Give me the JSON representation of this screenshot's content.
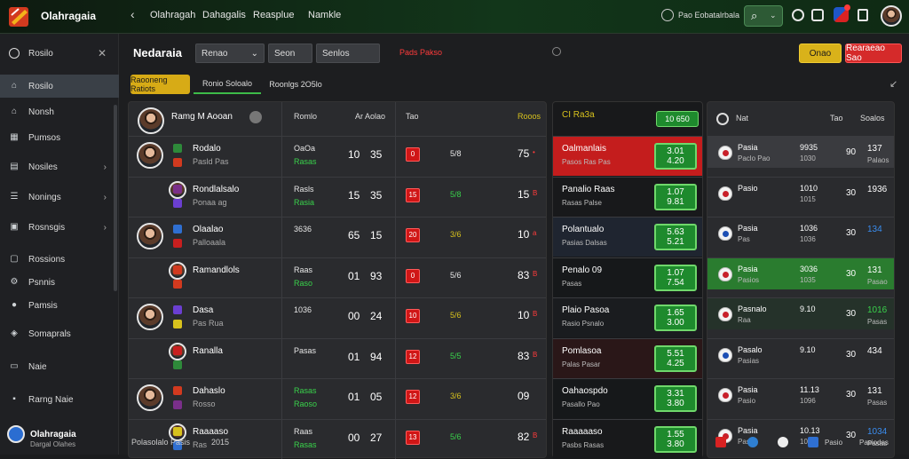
{
  "topbar": {
    "brand": "Olahragaia",
    "nav": [
      "Olahragah",
      "Dahagalis",
      "Reasplue",
      "Namkle"
    ],
    "right_label": "Pao Eobatalrbala",
    "search_icon": "search-icon"
  },
  "sidebar": {
    "header": "Rosilo",
    "items": [
      {
        "label": "Rosilo",
        "icon": "home-icon",
        "active": true,
        "chev": false
      },
      {
        "label": "Nonsh",
        "icon": "house-icon",
        "active": false,
        "chev": false
      },
      {
        "label": "Pumsos",
        "icon": "calendar-icon",
        "active": false,
        "chev": false
      },
      {
        "label": "Nosiles",
        "icon": "grid-icon",
        "active": false,
        "chev": true
      },
      {
        "label": "Nonings",
        "icon": "list-icon",
        "active": false,
        "chev": true
      },
      {
        "label": "Rosnsgis",
        "icon": "book-icon",
        "active": false,
        "chev": true
      },
      {
        "label": "Rossions",
        "icon": "box-icon",
        "active": false,
        "chev": false
      },
      {
        "label": "Psnnis",
        "icon": "gear-icon",
        "active": false,
        "chev": false
      },
      {
        "label": "Pamsis",
        "icon": "pin-icon",
        "active": false,
        "chev": false
      },
      {
        "label": "Somaprals",
        "icon": "shield-icon",
        "active": false,
        "chev": false
      },
      {
        "label": "Naie",
        "icon": "monitor-icon",
        "active": false,
        "chev": false
      },
      {
        "label": "Rarng Naie",
        "icon": "apps-icon",
        "active": false,
        "chev": false
      }
    ],
    "footer_brand": "Olahragaia",
    "footer_sub": "Dargal Olahes"
  },
  "toolbar": {
    "title": "Nedaraia",
    "select1": "Renao",
    "select2": "Seon",
    "select3": "Senlos",
    "alert": "Pads Pakso",
    "btn_yellow": "Onao",
    "btn_red": "Rearaeao Sao"
  },
  "tabs": {
    "active": "Raooneng Ratiots",
    "tab2": "Ronio Soloalo",
    "tab3": "Roonlgs 2O5lo"
  },
  "table": {
    "headers": [
      "Ramg M Aooan",
      "Romlo",
      "Ar Aolao",
      "Tao",
      "Rooos"
    ],
    "rows": [
      {
        "name": "Rodalo",
        "sub": "Pasld Pas",
        "c1": "OaOa",
        "c1b": "Rasas",
        "n1": "10",
        "n2": "35",
        "b1": "0",
        "m": "5/8",
        "mc": "",
        "s": "75",
        "s2": "•"
      },
      {
        "name": "Rondlalsalo",
        "sub": "Ponaa ag",
        "c1": "Rasls",
        "c1b": "Rasia",
        "n1": "15",
        "n2": "35",
        "b1": "15",
        "m": "5/8",
        "mc": "green",
        "s": "15",
        "s2": "B"
      },
      {
        "name": "Olaalao",
        "sub": "Palloaala",
        "c1": "3636",
        "c1b": "",
        "n1": "65",
        "n2": "15",
        "b1": "20",
        "m": "3/6",
        "mc": "yellow",
        "s": "10",
        "s2": "a"
      },
      {
        "name": "Ramandlols",
        "sub": "",
        "c1": "Raas",
        "c1b": "Raso",
        "n1": "01",
        "n2": "93",
        "b1": "0",
        "m": "5/6",
        "mc": "",
        "s": "83",
        "s2": "B"
      },
      {
        "name": "Dasa",
        "sub": "Pas Rua",
        "c1": "1036",
        "c1b": "",
        "n1": "00",
        "n2": "24",
        "b1": "10",
        "m": "5/6",
        "mc": "yellow",
        "s": "10",
        "s2": "B"
      },
      {
        "name": "Ranalla",
        "sub": "",
        "c1": "Pasas",
        "c1b": "",
        "n1": "01",
        "n2": "94",
        "b1": "12",
        "m": "5/5",
        "mc": "green",
        "s": "83",
        "s2": "B"
      },
      {
        "name": "Dahaslo",
        "sub": "Rosso",
        "c1": "Rasas",
        "c1b": "Raoso",
        "n1": "01",
        "n2": "05",
        "b1": "12",
        "m": "3/6",
        "mc": "yellow",
        "s": "09",
        "s2": ""
      },
      {
        "name": "Raaaaso",
        "sub": "Ras",
        "c1": "Raas",
        "c1b": "Rasas",
        "n1": "00",
        "n2": "27",
        "b1": "13",
        "m": "5/6",
        "mc": "green",
        "s": "82",
        "s2": "B"
      }
    ]
  },
  "odds": {
    "header": "CI Ra3a",
    "header_btn": "10 650",
    "rows": [
      {
        "name": "Oalmanlais",
        "sub": "Pasos Ras Pas",
        "v1": "3.01",
        "v2": "4.20"
      },
      {
        "name": "Panalio Raas",
        "sub": "Rasas Palse",
        "v1": "1.07",
        "v2": "9.81"
      },
      {
        "name": "Polantualo",
        "sub": "Pasias Dalsas",
        "v1": "5.63",
        "v2": "5.21"
      },
      {
        "name": "Penalo 09",
        "sub": "Pasas",
        "v1": "1.07",
        "v2": "7.54"
      },
      {
        "name": "Plaio Pasoa",
        "sub": "Rasio Psnalo",
        "v1": "1.65",
        "v2": "3.00"
      },
      {
        "name": "Pomlasoa",
        "sub": "Palas Pasar",
        "v1": "5.51",
        "v2": "4.25"
      },
      {
        "name": "Oahaospdo",
        "sub": "Pasallo Pao",
        "v1": "3.31",
        "v2": "3.80"
      },
      {
        "name": "Raaaaaso",
        "sub": "Pasbs Rasas",
        "v1": "1.55",
        "v2": "3.80"
      }
    ]
  },
  "standings": {
    "headers": [
      "Nat",
      "Tao",
      "Soalos"
    ],
    "rows": [
      {
        "name": "Pasia",
        "sub": "Paclo Pao",
        "a": "9935",
        "a2": "1030",
        "b": "90",
        "c": "137",
        "c2": "Palaos"
      },
      {
        "name": "Pasio",
        "sub": "",
        "a": "1010",
        "a2": "1015",
        "b": "30",
        "c": "1936",
        "c2": ""
      },
      {
        "name": "Pasia",
        "sub": "Pas",
        "a": "1036",
        "a2": "1036",
        "b": "30",
        "c": "134",
        "c2": ""
      },
      {
        "name": "Pasia",
        "sub": "Pasios",
        "a": "3036",
        "a2": "1035",
        "b": "30",
        "c": "131",
        "c2": "Pasao"
      },
      {
        "name": "Pasnalo",
        "sub": "Raa",
        "a": "9.10",
        "a2": "",
        "b": "30",
        "c": "1016",
        "c2": "Pasas"
      },
      {
        "name": "Pasalo",
        "sub": "Pasias",
        "a": "9.10",
        "a2": "",
        "b": "30",
        "c": "434",
        "c2": ""
      },
      {
        "name": "Pasia",
        "sub": "Pasio",
        "a": "11.13",
        "a2": "1096",
        "b": "30",
        "c": "131",
        "c2": "Pasas"
      },
      {
        "name": "Pasia",
        "sub": "Pasia",
        "a": "10.13",
        "a2": "1010",
        "b": "30",
        "c": "1034",
        "c2": "Pasas"
      }
    ]
  },
  "footer": {
    "left": "Polasolalo Pasis",
    "left2": "2015",
    "right1": "Pasio",
    "right2": "Pasiodas"
  }
}
